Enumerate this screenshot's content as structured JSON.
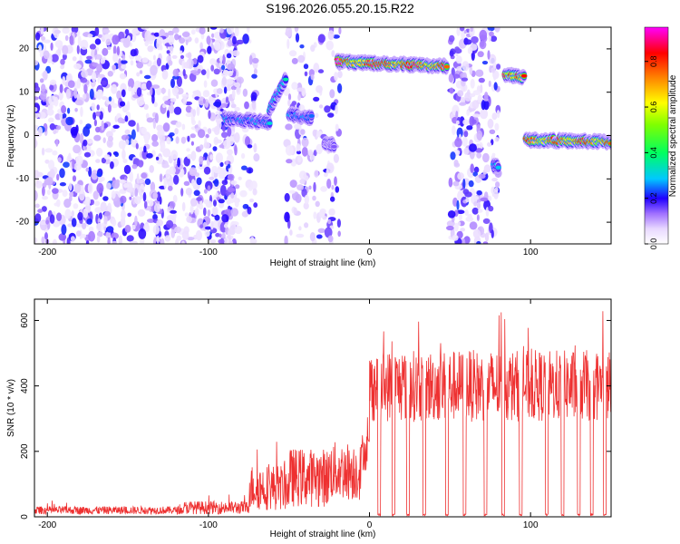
{
  "title": "S196.2026.055.20.15.R22",
  "colors": {
    "snr_line": "#ee3030",
    "axis": "#000000",
    "background": "#ffffff"
  },
  "chart_data": [
    {
      "type": "heatmap",
      "xlabel": "Height of straight line (km)",
      "ylabel": "Frequency (Hz)",
      "xlim": [
        -208,
        150
      ],
      "ylim": [
        -25,
        25
      ],
      "xticks": [
        -200,
        -100,
        0,
        100
      ],
      "yticks": [
        -20,
        -10,
        0,
        10,
        20
      ],
      "colorbar": {
        "label": "Normalized spectral amplitude",
        "range": [
          0.0,
          0.95
        ],
        "ticks": [
          0.0,
          0.2,
          0.4,
          0.6,
          0.8
        ],
        "tick_labels": [
          "0.0",
          "0.2",
          "0.4",
          "0.6",
          "0.8"
        ]
      },
      "noise_regions": [
        {
          "x0": -208,
          "x1": -82,
          "density": "high"
        },
        {
          "x0": -95,
          "x1": -70,
          "density": "medium"
        },
        {
          "x0": -52,
          "x1": -18,
          "density": "medium"
        },
        {
          "x0": 50,
          "x1": 80,
          "density": "high"
        }
      ],
      "ridges": [
        {
          "x0": -90,
          "x1": -62,
          "f0": 4,
          "f1": 3,
          "peak": 0.3
        },
        {
          "x0": -62,
          "x1": -52,
          "f0": 6,
          "f1": 13,
          "peak": 0.35
        },
        {
          "x0": -50,
          "x1": -36,
          "f0": 5,
          "f1": 4,
          "peak": 0.3
        },
        {
          "x0": -28,
          "x1": -22,
          "f0": -2,
          "f1": -2,
          "peak": 0.15
        },
        {
          "x0": -20,
          "x1": 48,
          "f0": 17,
          "f1": 16,
          "peak": 0.9
        },
        {
          "x0": 77,
          "x1": 80,
          "f0": -7,
          "f1": -7,
          "peak": 0.3
        },
        {
          "x0": 84,
          "x1": 96,
          "f0": 14,
          "f1": 13.5,
          "peak": 0.85
        },
        {
          "x0": 97,
          "x1": 150,
          "f0": -1,
          "f1": -1.5,
          "peak": 0.85
        }
      ]
    },
    {
      "type": "line",
      "xlabel": "Height of straight line (km)",
      "ylabel": "SNR (10 * v/v)",
      "xlim": [
        -208,
        150
      ],
      "ylim": [
        0,
        665
      ],
      "xticks": [
        -200,
        -100,
        0,
        100
      ],
      "yticks": [
        0,
        200,
        400,
        600
      ],
      "segments": [
        {
          "x0": -208,
          "x1": -115,
          "mean": 20,
          "noise": 12
        },
        {
          "x0": -115,
          "x1": -75,
          "mean": 28,
          "noise": 20
        },
        {
          "x0": -75,
          "x1": -50,
          "mean": 90,
          "noise": 70
        },
        {
          "x0": -50,
          "x1": -25,
          "mean": 120,
          "noise": 90
        },
        {
          "x0": -25,
          "x1": -5,
          "mean": 140,
          "noise": 90
        },
        {
          "x0": -5,
          "x1": 0,
          "mean": 200,
          "noise": 60
        },
        {
          "x0": 0,
          "x1": 150,
          "mean": 400,
          "noise": 110
        }
      ],
      "dropouts": [
        6,
        15,
        24,
        34,
        48,
        59,
        72,
        83,
        94,
        110,
        120,
        130,
        138,
        146
      ]
    }
  ]
}
